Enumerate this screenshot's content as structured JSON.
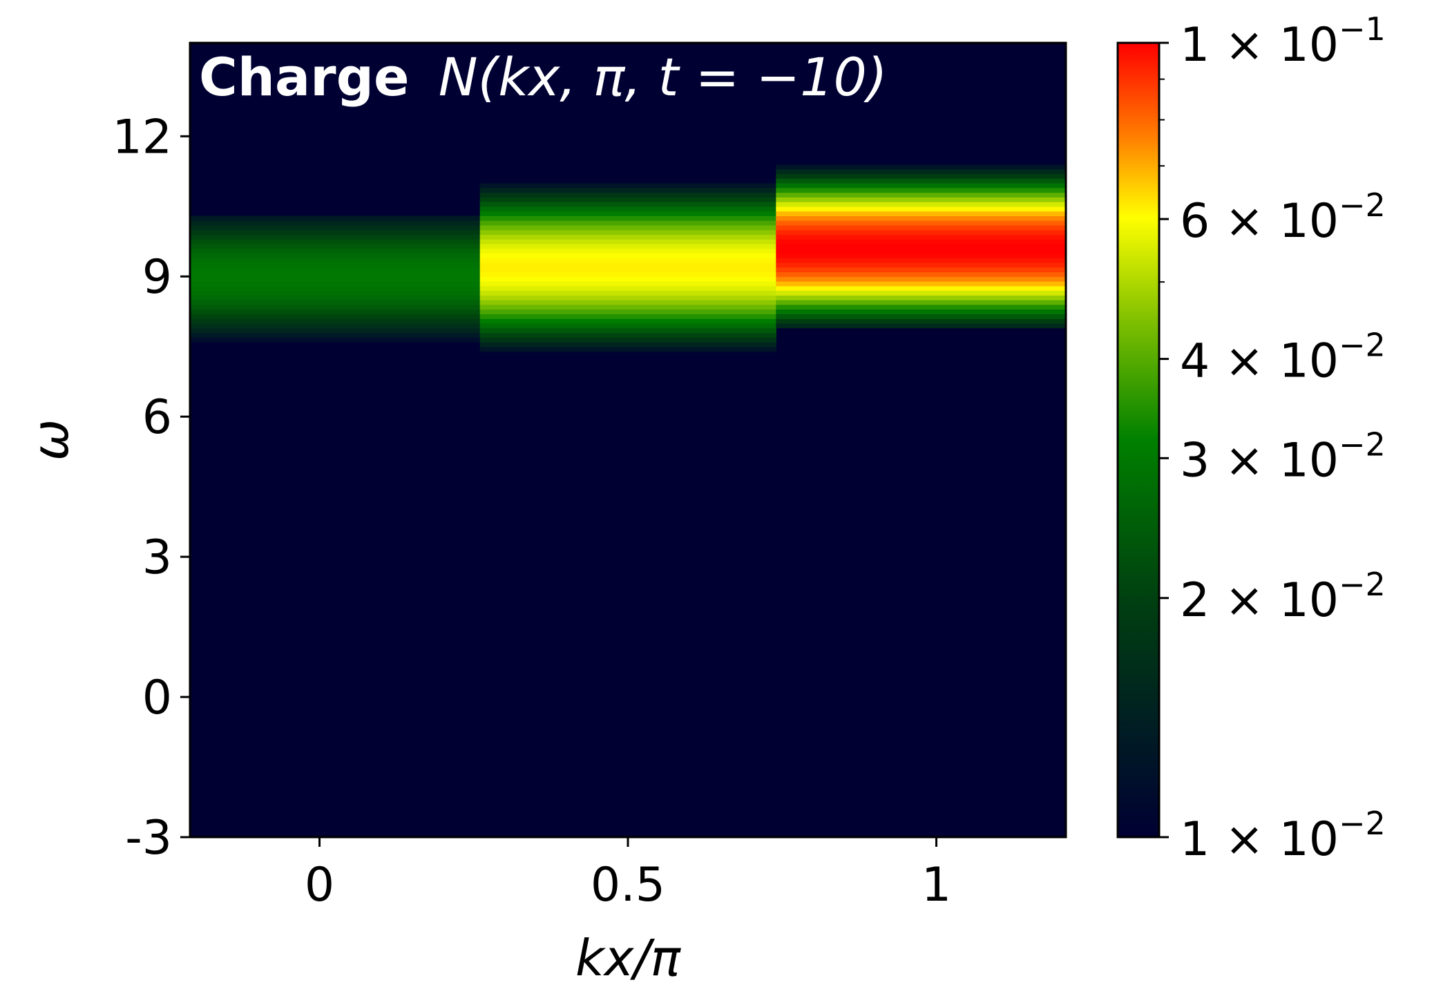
{
  "chart_data": {
    "type": "heatmap",
    "title_bold": "Charge",
    "title_math": "N(kx, π, t = −10)",
    "xlabel": "kx/π",
    "ylabel": "ω",
    "xlim": [
      -0.21,
      1.21
    ],
    "ylim": [
      -3,
      14
    ],
    "xticks": [
      0,
      0.5,
      1
    ],
    "xtick_labels": [
      "0",
      "0.5",
      "1"
    ],
    "yticks": [
      -3,
      0,
      3,
      6,
      9,
      12
    ],
    "ytick_labels": [
      "-3",
      "0",
      "3",
      "6",
      "9",
      "12"
    ],
    "background_color": "#000033",
    "columns": [
      {
        "kx": 0,
        "x_range": [
          -0.21,
          0.26
        ],
        "peak_omega": 9.0,
        "peak_value": 0.03,
        "omega_range": [
          6.2,
          10.3
        ]
      },
      {
        "kx": 0.5,
        "x_range": [
          0.26,
          0.74
        ],
        "peak_omega": 9.2,
        "peak_value": 0.062,
        "omega_range": [
          7.2,
          11.3
        ]
      },
      {
        "kx": 1,
        "x_range": [
          0.74,
          1.21
        ],
        "peak_omega": 9.6,
        "peak_value": 0.1,
        "omega_range": [
          7.9,
          11.5
        ]
      }
    ],
    "colorbar": {
      "scale": "log",
      "range": [
        0.01,
        0.1
      ],
      "tick_values": [
        0.1,
        0.06,
        0.04,
        0.03,
        0.02,
        0.01
      ],
      "tick_mantissas": [
        "1",
        "6",
        "4",
        "3",
        "2",
        "1"
      ],
      "tick_exponents": [
        "−1",
        "−2",
        "−2",
        "−2",
        "−2",
        "−2"
      ],
      "colormap": [
        {
          "pos": 0.0,
          "color": "#000033"
        },
        {
          "pos": 0.3,
          "color": "#004010"
        },
        {
          "pos": 0.5,
          "color": "#008000"
        },
        {
          "pos": 0.65,
          "color": "#7fc000"
        },
        {
          "pos": 0.78,
          "color": "#ffff00"
        },
        {
          "pos": 0.88,
          "color": "#ff8000"
        },
        {
          "pos": 1.0,
          "color": "#ff0000"
        }
      ]
    }
  }
}
